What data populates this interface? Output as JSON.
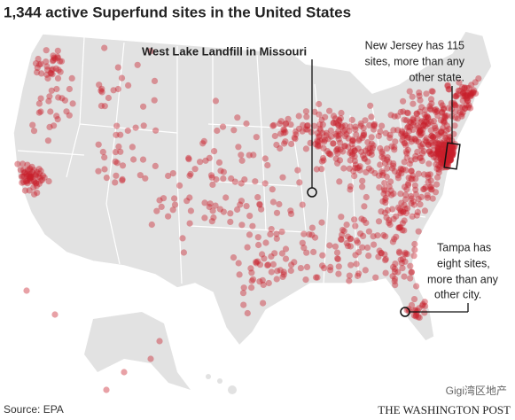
{
  "title": "1,344 active Superfund sites in the United States",
  "annotations": [
    {
      "lines": [
        "West Lake Landfill in Missouri"
      ]
    },
    {
      "lines": [
        "New Jersey has 115",
        "sites, more than any",
        "other state."
      ]
    },
    {
      "lines": [
        "Tampa has",
        "eight sites,",
        "more than any",
        "other city."
      ]
    }
  ],
  "source": "Source: EPA",
  "credit": "THE WASHINGTON POST",
  "watermark": "Gigi湾区地产"
}
